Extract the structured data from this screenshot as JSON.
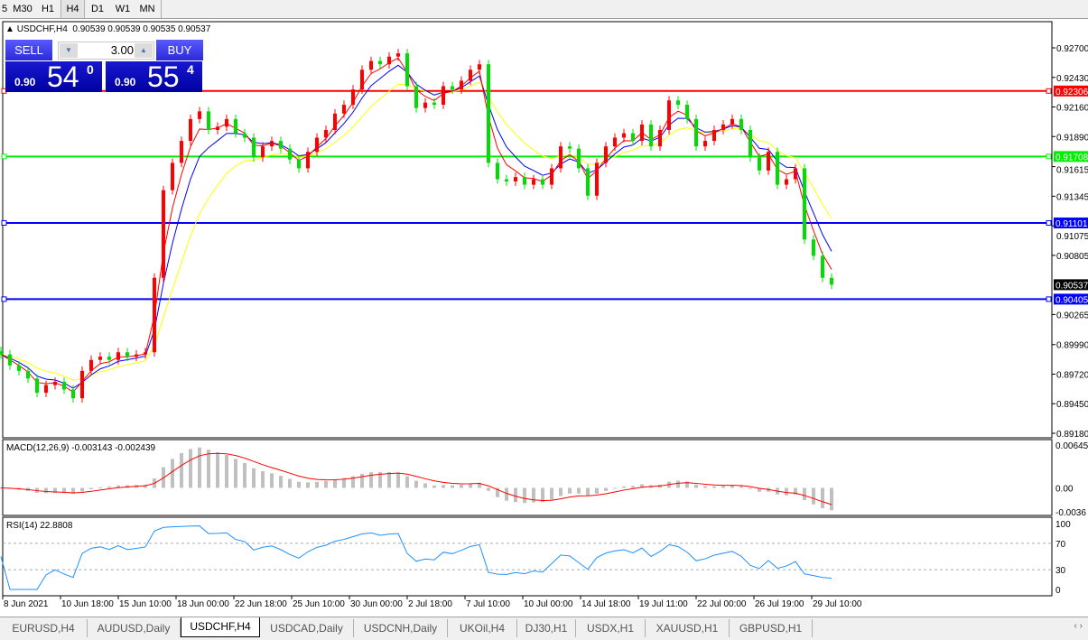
{
  "toolbar": {
    "timeframes": [
      "5",
      "M30",
      "H1",
      "H4",
      "D1",
      "W1",
      "MN"
    ],
    "active": "H4"
  },
  "chart_header": {
    "symbol_period": "USDCHF,H4",
    "ohlc": "0.90539 0.90539 0.90535 0.90537"
  },
  "trade_panel": {
    "sell_label": "SELL",
    "buy_label": "BUY",
    "lots": "3.00",
    "sell_price": {
      "prefix": "0.90",
      "big": "54",
      "sup": "0"
    },
    "buy_price": {
      "prefix": "0.90",
      "big": "55",
      "sup": "4"
    }
  },
  "colors": {
    "bull": "#ff0000",
    "bear": "#00dd00",
    "ma_fast": "#ff0000",
    "ma_mid": "#0000ff",
    "ma_slow": "#ffff00",
    "rsi": "#1e90ff",
    "macd_hist": "#c0c0c0",
    "macd_signal": "#ff0000"
  },
  "chart_data": {
    "type": "candlestick",
    "symbol": "USDCHF",
    "timeframe": "H4",
    "ylim": [
      0.8918,
      0.927
    ],
    "price_ticks": [
      "0.92700",
      "0.92430",
      "0.92160",
      "0.91890",
      "0.91615",
      "0.91345",
      "0.91075",
      "0.90805",
      "0.90265",
      "0.89990",
      "0.89720",
      "0.89450",
      "0.89180"
    ],
    "closes": [
      0.899,
      0.898,
      0.8975,
      0.8968,
      0.8955,
      0.8962,
      0.8965,
      0.8958,
      0.895,
      0.8975,
      0.8985,
      0.8988,
      0.8985,
      0.8992,
      0.8988,
      0.899,
      0.8992,
      0.906,
      0.914,
      0.9165,
      0.9185,
      0.9205,
      0.9212,
      0.9195,
      0.9198,
      0.9205,
      0.9192,
      0.9188,
      0.917,
      0.918,
      0.9185,
      0.9178,
      0.9168,
      0.916,
      0.9175,
      0.9188,
      0.9195,
      0.921,
      0.9218,
      0.9232,
      0.925,
      0.9258,
      0.9255,
      0.9262,
      0.9265,
      0.9235,
      0.9215,
      0.922,
      0.9218,
      0.9235,
      0.9232,
      0.924,
      0.925,
      0.9255,
      0.9165,
      0.915,
      0.9148,
      0.9152,
      0.9145,
      0.915,
      0.9145,
      0.916,
      0.918,
      0.9178,
      0.916,
      0.9135,
      0.9165,
      0.918,
      0.9188,
      0.9192,
      0.9185,
      0.92,
      0.918,
      0.9195,
      0.9222,
      0.9218,
      0.9205,
      0.918,
      0.9185,
      0.9195,
      0.92,
      0.9205,
      0.9195,
      0.917,
      0.9158,
      0.9175,
      0.9145,
      0.915,
      0.916,
      0.9095,
      0.908,
      0.906,
      0.90537
    ],
    "hlines": [
      {
        "price": "0.92306",
        "color": "#ff0000"
      },
      {
        "price": "0.91708",
        "color": "#00ee00"
      },
      {
        "price": "0.91101",
        "color": "#0000ff"
      },
      {
        "price": "0.90405",
        "color": "#0000ff"
      }
    ],
    "current_price": "0.90537",
    "x_tick_labels": [
      "8 Jun 2021",
      "10 Jun 18:00",
      "15 Jun 10:00",
      "18 Jun 00:00",
      "22 Jun 18:00",
      "25 Jun 10:00",
      "30 Jun 00:00",
      "2 Jul 18:00",
      "7 Jul 10:00",
      "10 Jul 00:00",
      "14 Jul 18:00",
      "19 Jul 11:00",
      "22 Jul 00:00",
      "26 Jul 19:00",
      "29 Jul 10:00"
    ],
    "macd": {
      "label": "MACD(12,26,9) -0.003143 -0.002439",
      "ticks": [
        "0.006455",
        "0.00",
        "-0.0036"
      ],
      "ylim": [
        -0.0036,
        0.006455
      ]
    },
    "rsi": {
      "label": "RSI(14) 22.8808",
      "ticks": [
        "100",
        "70",
        "30",
        "0"
      ],
      "levels": [
        70,
        30
      ],
      "ylim": [
        0,
        100
      ]
    }
  },
  "tabs": [
    "EURUSD,H4",
    "AUDUSD,Daily",
    "USDCHF,H4",
    "USDCAD,Daily",
    "USDCNH,Daily",
    "UKOil,H4",
    "DJ30,H1",
    "USDX,H1",
    "XAUUSD,H1",
    "GBPUSD,H1"
  ],
  "active_tab": "USDCHF,H4",
  "tab_scroll": "‹ ›"
}
